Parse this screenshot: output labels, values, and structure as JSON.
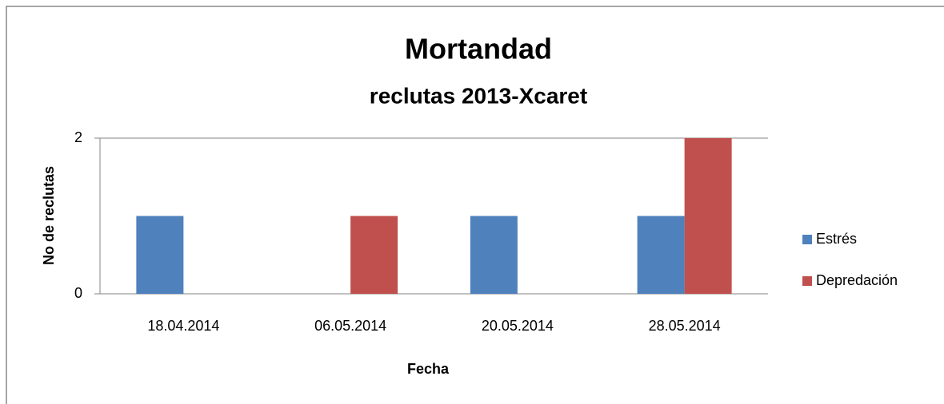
{
  "chart_data": {
    "type": "bar",
    "title": "Mortandad",
    "subtitle": "reclutas 2013-Xcaret",
    "x_label": "Fecha",
    "y_label": "No de reclutas",
    "categories": [
      "18.04.2014",
      "06.05.2014",
      "20.05.2014",
      "28.05.2014"
    ],
    "series": [
      {
        "name": "Estrés",
        "color": "#4f81bd",
        "values": [
          1,
          0,
          1,
          1
        ]
      },
      {
        "name": "Depredación",
        "color": "#c0504d",
        "values": [
          0,
          1,
          0,
          2
        ]
      }
    ],
    "ylim": [
      0,
      2
    ],
    "yticks": [
      0,
      2
    ],
    "grid": true,
    "legend": "right"
  }
}
